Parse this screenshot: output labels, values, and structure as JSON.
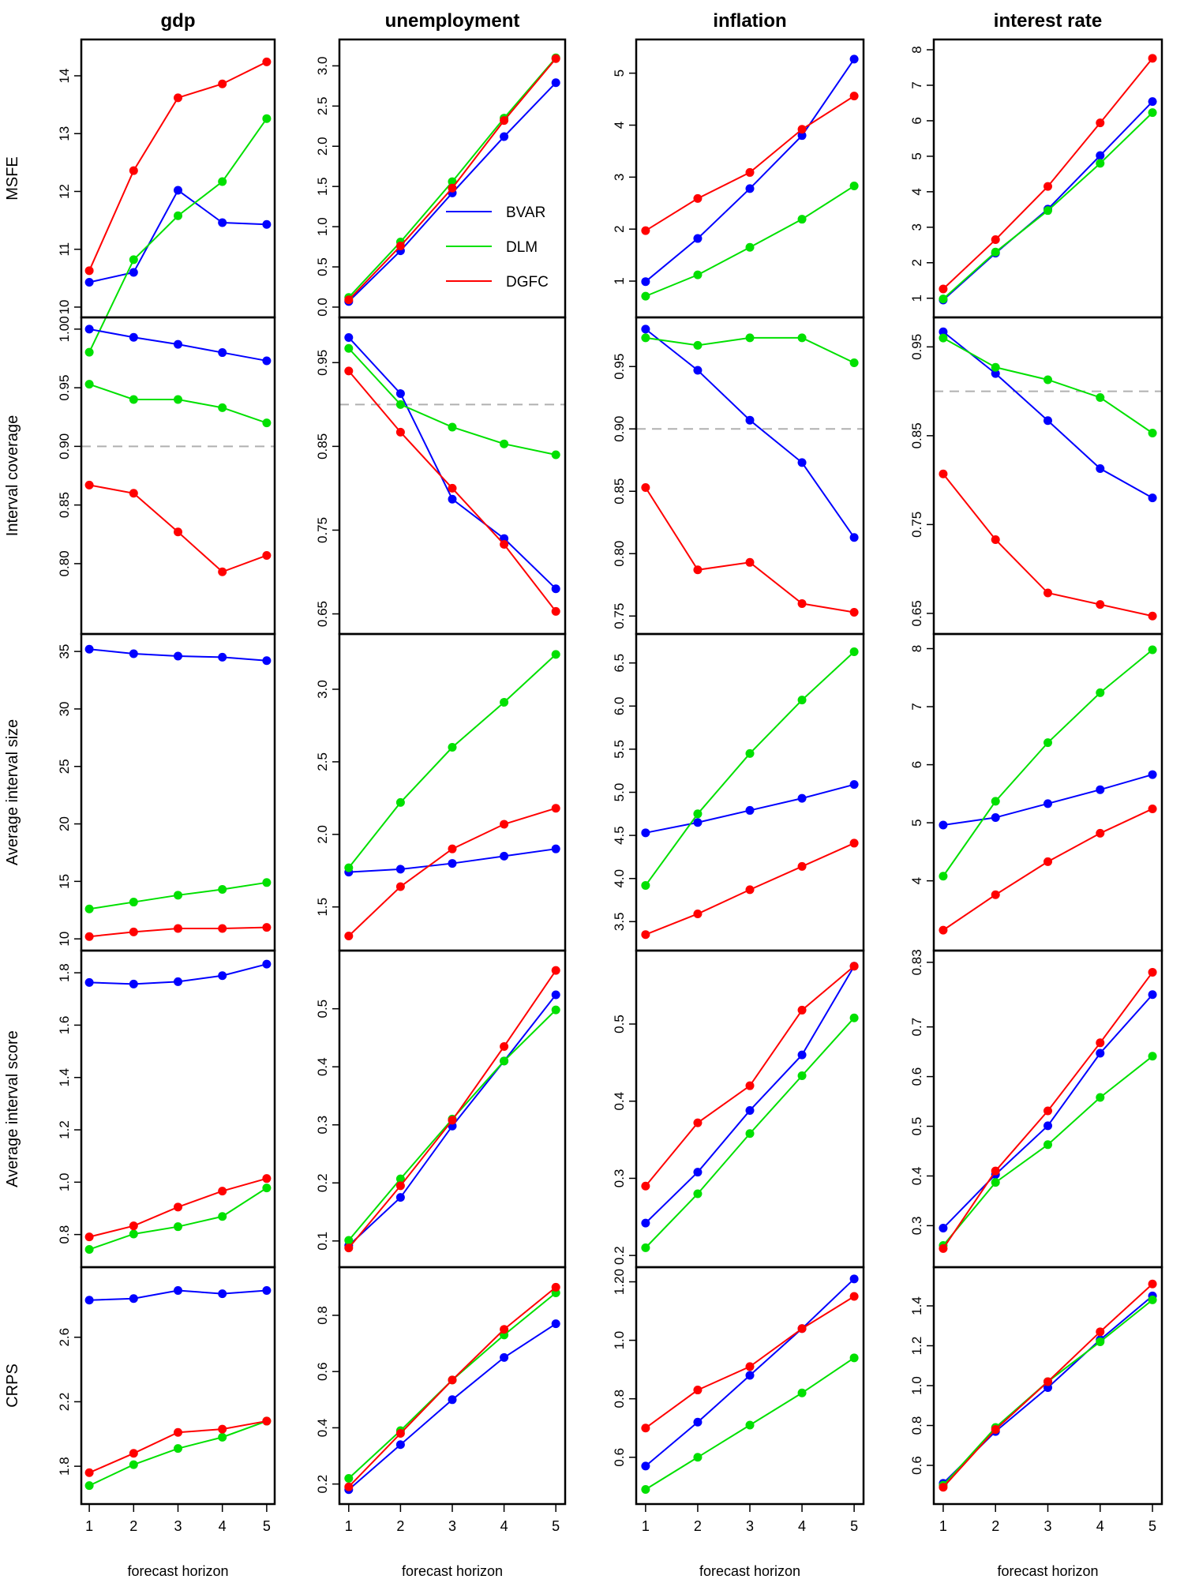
{
  "chart_data": {
    "type": "line",
    "x": [
      1,
      2,
      3,
      4,
      5
    ],
    "xlabel": "forecast horizon",
    "x_ticks": [
      "1",
      "2",
      "3",
      "4",
      "5"
    ],
    "columns": [
      "gdp",
      "unemployment",
      "inflation",
      "interest rate"
    ],
    "rows": [
      "MSFE",
      "Interval coverage",
      "Average interval size",
      "Average interval score",
      "CRPS"
    ],
    "series_names": [
      "BVAR",
      "DLM",
      "DGFC"
    ],
    "series_colors": [
      "#0000ff",
      "#00e000",
      "#ff0000"
    ],
    "legend_location": "MSFE unemployment panel, center",
    "reference_line": {
      "rows": [
        "Interval coverage"
      ],
      "value": 0.9,
      "style": "dashed",
      "color": "#b0b0b0"
    },
    "panels": [
      [
        {
          "ylim": [
            10.0,
            14.45
          ],
          "ticks": [
            "10",
            "11",
            "12",
            "13",
            "14"
          ],
          "tick_values": [
            10,
            11,
            12,
            13,
            14
          ],
          "series": [
            [
              10.43,
              10.6,
              12.02,
              11.46,
              11.43
            ],
            [
              9.22,
              10.82,
              11.58,
              12.17,
              13.26
            ],
            [
              10.63,
              12.36,
              13.62,
              13.86,
              14.24
            ]
          ]
        },
        {
          "ylim": [
            0.75,
            1.0
          ],
          "ticks": [
            "0.80",
            "0.85",
            "0.90",
            "0.95",
            "1.00"
          ],
          "tick_values": [
            0.8,
            0.85,
            0.9,
            0.95,
            1.0
          ],
          "series": [
            [
              1.0,
              0.993,
              0.987,
              0.98,
              0.973
            ],
            [
              0.953,
              0.94,
              0.94,
              0.933,
              0.92
            ],
            [
              0.867,
              0.86,
              0.827,
              0.793,
              0.807
            ]
          ]
        },
        {
          "ylim": [
            10,
            35.5
          ],
          "ticks": [
            "10",
            "15",
            "20",
            "25",
            "30",
            "35"
          ],
          "tick_values": [
            10,
            15,
            20,
            25,
            30,
            35
          ],
          "series": [
            [
              35.2,
              34.8,
              34.6,
              34.5,
              34.2
            ],
            [
              12.6,
              13.2,
              13.8,
              14.3,
              14.9
            ],
            [
              10.2,
              10.6,
              10.9,
              10.9,
              11.0
            ]
          ]
        },
        {
          "ylim": [
            0.72,
            1.84
          ],
          "ticks": [
            "0.8",
            "1.0",
            "1.2",
            "1.4",
            "1.6",
            "1.8"
          ],
          "tick_values": [
            0.8,
            1.0,
            1.2,
            1.4,
            1.6,
            1.8
          ],
          "series": [
            [
              1.763,
              1.757,
              1.766,
              1.789,
              1.833
            ],
            [
              0.743,
              0.802,
              0.83,
              0.869,
              0.978
            ],
            [
              0.791,
              0.833,
              0.905,
              0.966,
              1.014
            ]
          ]
        },
        {
          "ylim": [
            1.62,
            2.98
          ],
          "ticks": [
            "1.8",
            "2.2",
            "2.6"
          ],
          "tick_values": [
            1.8,
            2.2,
            2.6
          ],
          "series": [
            [
              2.83,
              2.84,
              2.89,
              2.87,
              2.89
            ],
            [
              1.68,
              1.81,
              1.91,
              1.98,
              2.08
            ],
            [
              1.76,
              1.88,
              2.01,
              2.03,
              2.08
            ]
          ]
        }
      ],
      [
        {
          "ylim": [
            0.0,
            3.2
          ],
          "ticks": [
            "0.0",
            "0.5",
            "1.0",
            "1.5",
            "2.0",
            "2.5",
            "3.0"
          ],
          "tick_values": [
            0,
            0.5,
            1.0,
            1.5,
            2.0,
            2.5,
            3.0
          ],
          "series": [
            [
              0.07,
              0.7,
              1.42,
              2.12,
              2.79
            ],
            [
              0.12,
              0.81,
              1.56,
              2.35,
              3.1
            ],
            [
              0.09,
              0.76,
              1.48,
              2.32,
              3.09
            ]
          ]
        },
        {
          "ylim": [
            0.64,
            0.99
          ],
          "ticks": [
            "0.65",
            "0.75",
            "0.85",
            "0.95"
          ],
          "tick_values": [
            0.65,
            0.75,
            0.85,
            0.95
          ],
          "series": [
            [
              0.98,
              0.913,
              0.787,
              0.74,
              0.68
            ],
            [
              0.967,
              0.9,
              0.873,
              0.853,
              0.84
            ],
            [
              0.94,
              0.867,
              0.8,
              0.733,
              0.653
            ]
          ]
        },
        {
          "ylim": [
            1.28,
            3.3
          ],
          "ticks": [
            "1.5",
            "2.0",
            "2.5",
            "3.0"
          ],
          "tick_values": [
            1.5,
            2.0,
            2.5,
            3.0
          ],
          "series": [
            [
              1.74,
              1.76,
              1.8,
              1.85,
              1.9
            ],
            [
              1.77,
              2.22,
              2.6,
              2.91,
              3.24
            ],
            [
              1.3,
              1.64,
              1.9,
              2.07,
              2.18
            ]
          ]
        },
        {
          "ylim": [
            0.075,
            0.58
          ],
          "ticks": [
            "0.1",
            "0.2",
            "0.3",
            "0.4",
            "0.5"
          ],
          "tick_values": [
            0.1,
            0.2,
            0.3,
            0.4,
            0.5
          ],
          "series": [
            [
              0.092,
              0.175,
              0.298,
              0.41,
              0.524
            ],
            [
              0.101,
              0.207,
              0.31,
              0.41,
              0.498
            ],
            [
              0.088,
              0.195,
              0.308,
              0.435,
              0.566
            ]
          ]
        },
        {
          "ylim": [
            0.16,
            0.94
          ],
          "ticks": [
            "0.2",
            "0.4",
            "0.6",
            "0.8"
          ],
          "tick_values": [
            0.2,
            0.4,
            0.6,
            0.8
          ],
          "series": [
            [
              0.18,
              0.34,
              0.5,
              0.65,
              0.77
            ],
            [
              0.22,
              0.39,
              0.57,
              0.73,
              0.88
            ],
            [
              0.19,
              0.38,
              0.57,
              0.75,
              0.9
            ]
          ]
        }
      ],
      [
        {
          "ylim": [
            0.5,
            5.45
          ],
          "ticks": [
            "1",
            "2",
            "3",
            "4",
            "5"
          ],
          "tick_values": [
            1,
            2,
            3,
            4,
            5
          ],
          "series": [
            [
              0.99,
              1.82,
              2.78,
              3.8,
              5.27
            ],
            [
              0.71,
              1.12,
              1.65,
              2.19,
              2.83
            ],
            [
              1.97,
              2.59,
              3.09,
              3.92,
              4.56
            ]
          ]
        },
        {
          "ylim": [
            0.745,
            0.98
          ],
          "ticks": [
            "0.75",
            "0.80",
            "0.85",
            "0.90",
            "0.95"
          ],
          "tick_values": [
            0.75,
            0.8,
            0.85,
            0.9,
            0.95
          ],
          "series": [
            [
              0.98,
              0.947,
              0.907,
              0.873,
              0.813
            ],
            [
              0.973,
              0.967,
              0.973,
              0.973,
              0.953
            ],
            [
              0.853,
              0.787,
              0.793,
              0.76,
              0.753
            ]
          ]
        },
        {
          "ylim": [
            3.3,
            6.7
          ],
          "ticks": [
            "3.5",
            "4.0",
            "4.5",
            "5.0",
            "5.5",
            "6.0",
            "6.5"
          ],
          "tick_values": [
            3.5,
            4.0,
            4.5,
            5.0,
            5.5,
            6.0,
            6.5
          ],
          "series": [
            [
              4.53,
              4.65,
              4.79,
              4.93,
              5.09
            ],
            [
              3.92,
              4.75,
              5.45,
              6.07,
              6.63
            ],
            [
              3.35,
              3.59,
              3.87,
              4.14,
              4.41
            ]
          ]
        },
        {
          "ylim": [
            0.2,
            0.58
          ],
          "ticks": [
            "0.2",
            "0.3",
            "0.4",
            "0.5"
          ],
          "tick_values": [
            0.2,
            0.3,
            0.4,
            0.5
          ],
          "series": [
            [
              0.242,
              0.308,
              0.388,
              0.46,
              0.575
            ],
            [
              0.21,
              0.28,
              0.358,
              0.433,
              0.508
            ],
            [
              0.29,
              0.372,
              0.42,
              0.518,
              0.575
            ]
          ]
        },
        {
          "ylim": [
            0.47,
            1.22
          ],
          "ticks": [
            "0.6",
            "0.8",
            "1.0",
            "1.20"
          ],
          "tick_values": [
            0.6,
            0.8,
            1.0,
            1.2
          ],
          "series": [
            [
              0.57,
              0.72,
              0.88,
              1.04,
              1.21
            ],
            [
              0.49,
              0.6,
              0.71,
              0.82,
              0.94
            ],
            [
              0.7,
              0.83,
              0.91,
              1.04,
              1.15
            ]
          ]
        }
      ],
      [
        {
          "ylim": [
            0.75,
            8.0
          ],
          "ticks": [
            "1",
            "2",
            "3",
            "4",
            "5",
            "6",
            "7",
            "8"
          ],
          "tick_values": [
            1,
            2,
            3,
            4,
            5,
            6,
            7,
            8
          ],
          "series": [
            [
              0.95,
              2.27,
              3.51,
              5.02,
              6.54
            ],
            [
              0.98,
              2.3,
              3.47,
              4.8,
              6.23
            ],
            [
              1.26,
              2.65,
              4.15,
              5.94,
              7.76
            ]
          ]
        },
        {
          "ylim": [
            0.64,
            0.97
          ],
          "ticks": [
            "0.65",
            "0.75",
            "0.85",
            "0.95"
          ],
          "tick_values": [
            0.65,
            0.75,
            0.85,
            0.95
          ],
          "series": [
            [
              0.967,
              0.92,
              0.867,
              0.813,
              0.78
            ],
            [
              0.96,
              0.927,
              0.913,
              0.893,
              0.853
            ],
            [
              0.807,
              0.733,
              0.673,
              0.66,
              0.647
            ]
          ]
        },
        {
          "ylim": [
            3.0,
            8.05
          ],
          "ticks": [
            "4",
            "5",
            "6",
            "7",
            "8"
          ],
          "tick_values": [
            4,
            5,
            6,
            7,
            8
          ],
          "series": [
            [
              4.96,
              5.09,
              5.33,
              5.57,
              5.83
            ],
            [
              4.08,
              5.37,
              6.38,
              7.24,
              7.98
            ],
            [
              3.15,
              3.76,
              4.33,
              4.82,
              5.24
            ]
          ]
        },
        {
          "ylim": [
            0.24,
            0.83
          ],
          "ticks": [
            "0.3",
            "0.4",
            "0.5",
            "0.6",
            "0.7",
            "0.83"
          ],
          "tick_values": [
            0.3,
            0.4,
            0.5,
            0.6,
            0.7,
            0.83
          ],
          "series": [
            [
              0.295,
              0.403,
              0.501,
              0.647,
              0.765
            ],
            [
              0.26,
              0.387,
              0.463,
              0.558,
              0.641
            ],
            [
              0.254,
              0.41,
              0.531,
              0.668,
              0.81
            ]
          ]
        },
        {
          "ylim": [
            0.45,
            1.55
          ],
          "ticks": [
            "0.6",
            "0.8",
            "1.0",
            "1.2",
            "1.4"
          ],
          "tick_values": [
            0.6,
            0.8,
            1.0,
            1.2,
            1.4
          ],
          "series": [
            [
              0.51,
              0.77,
              0.99,
              1.23,
              1.45
            ],
            [
              0.5,
              0.79,
              1.02,
              1.22,
              1.43
            ],
            [
              0.49,
              0.78,
              1.02,
              1.27,
              1.51
            ]
          ]
        }
      ]
    ]
  }
}
